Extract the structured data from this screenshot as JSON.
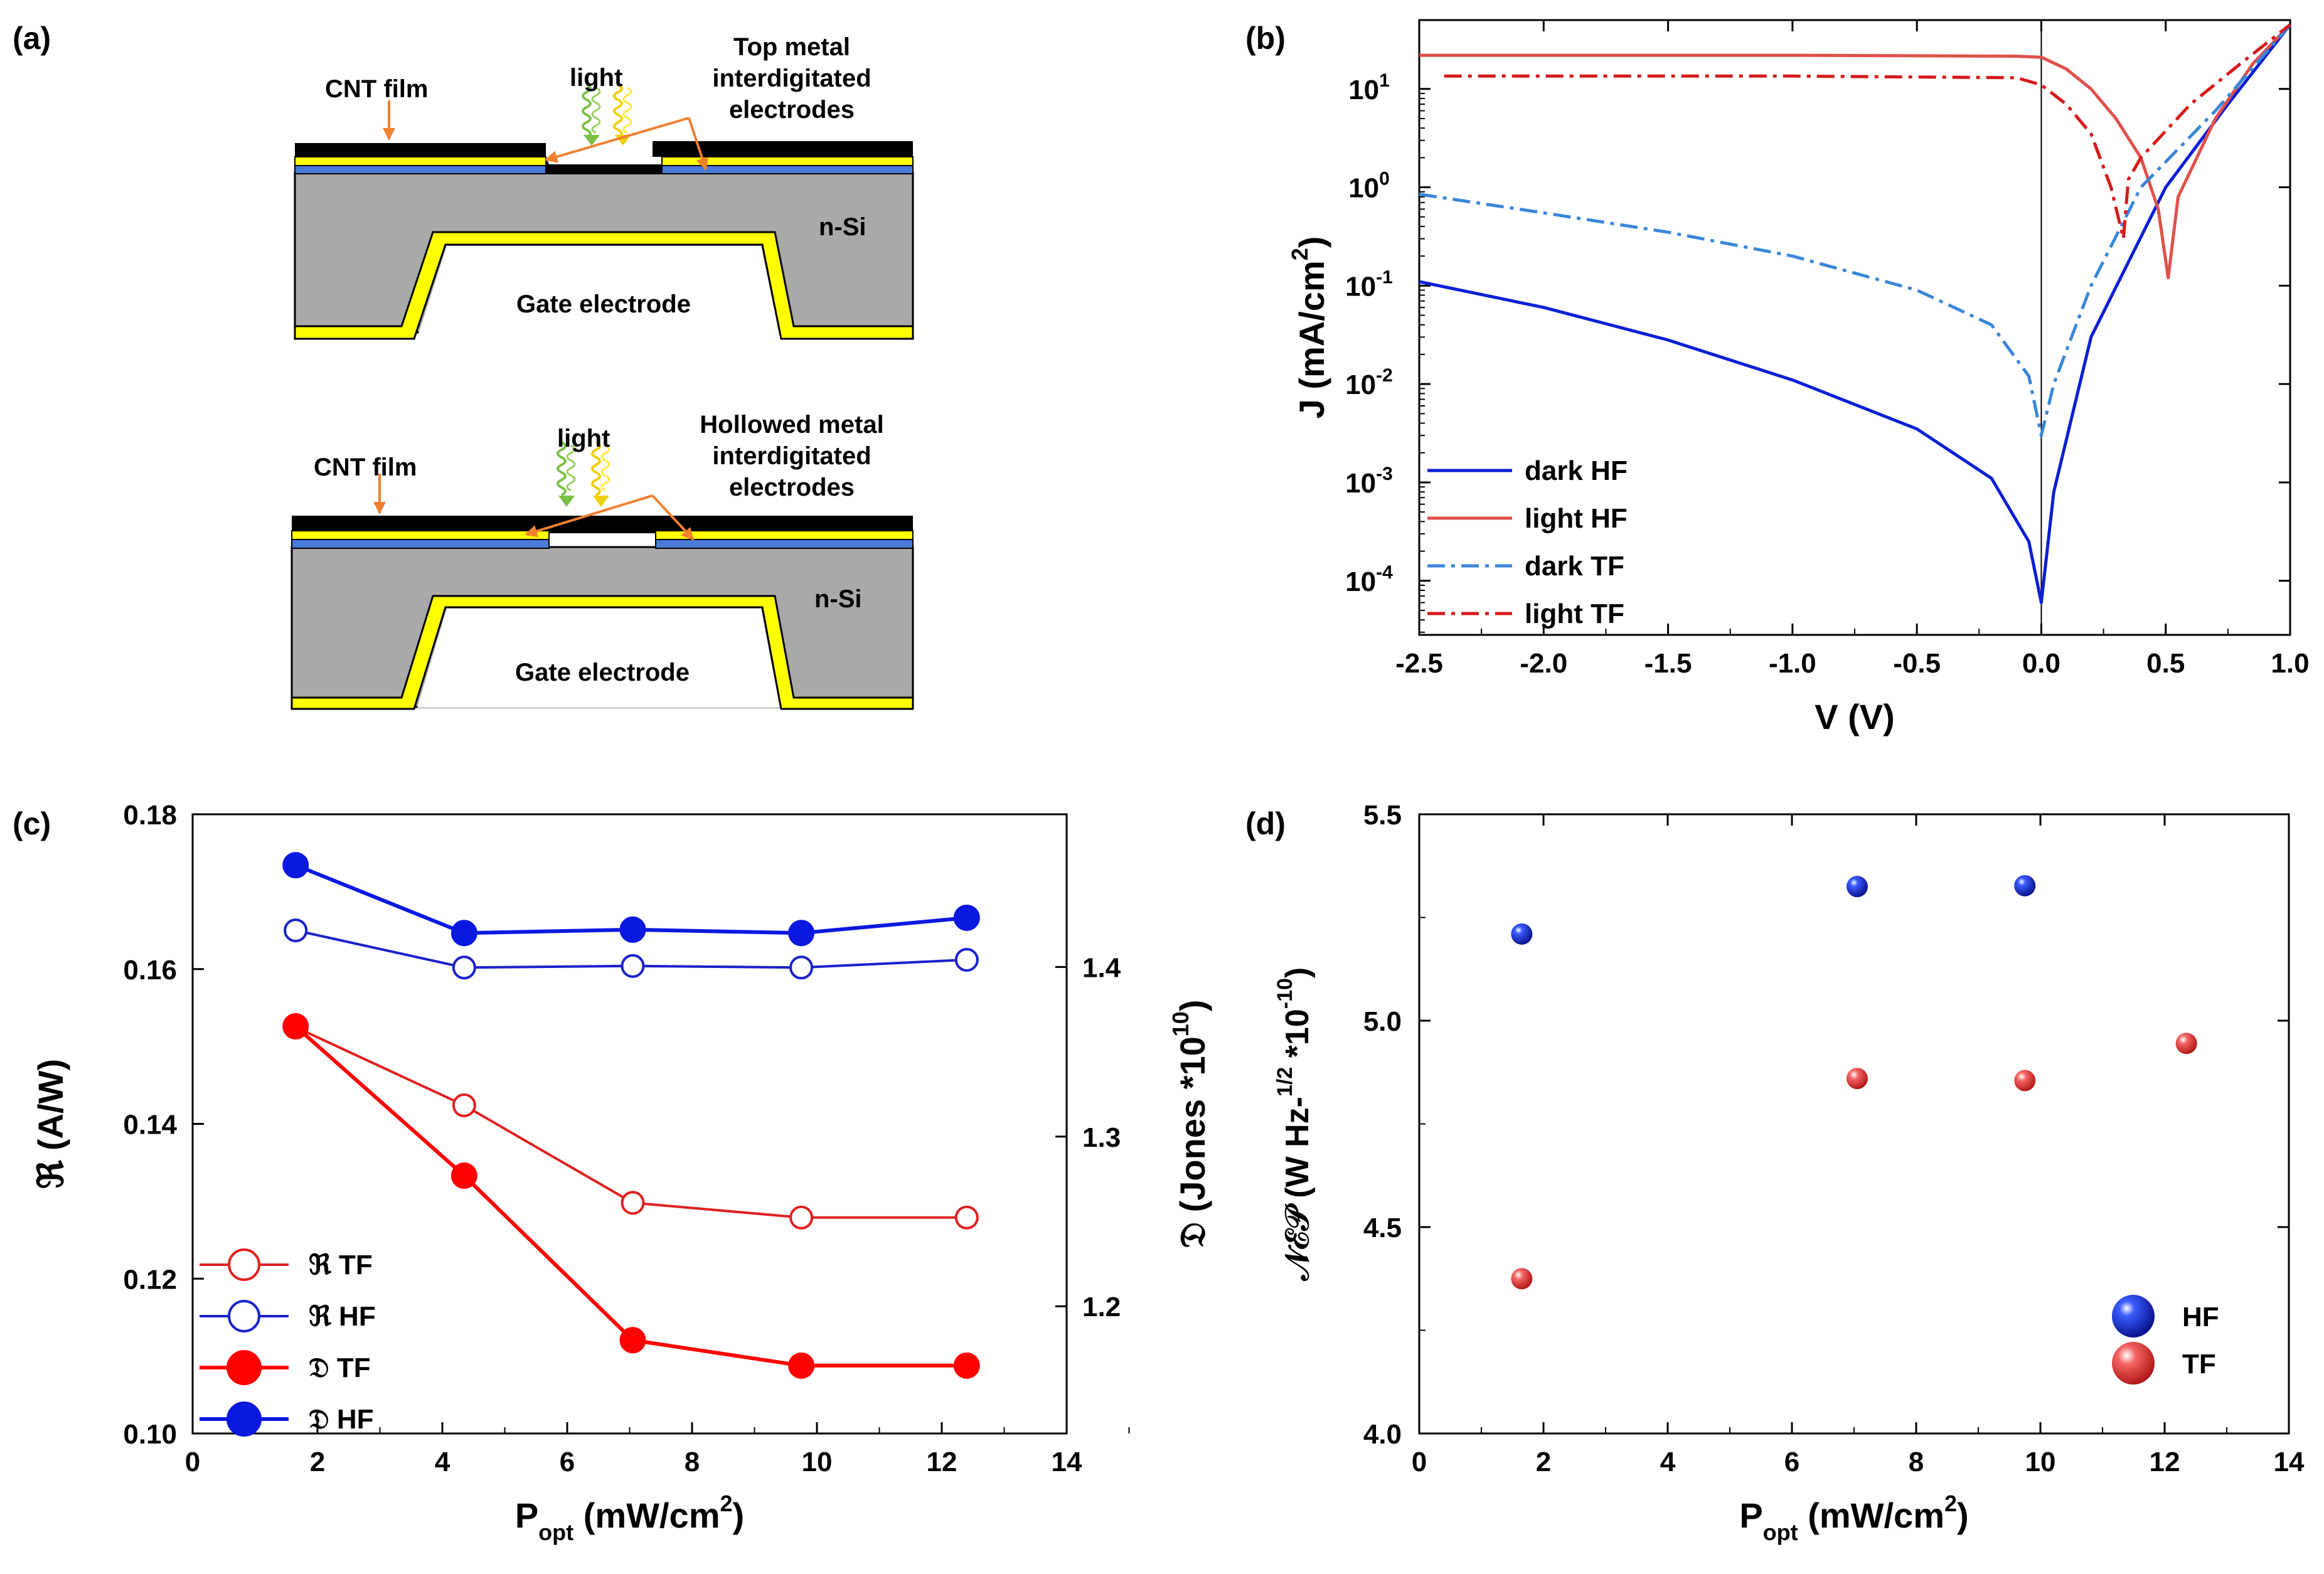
{
  "panels": {
    "a": {
      "label": "(a)",
      "top": {
        "cnt_label": "CNT film",
        "light_label": "light",
        "electrode_label": [
          "Top metal",
          "interdigitated",
          "electrodes"
        ],
        "substrate_label": "n-Si",
        "gate_label": "Gate electrode"
      },
      "bottom": {
        "cnt_label": "CNT film",
        "light_label": "light",
        "electrode_label": [
          "Hollowed metal",
          "interdigitated",
          "electrodes"
        ],
        "substrate_label": "n-Si",
        "gate_label": "Gate electrode"
      },
      "colors": {
        "film": "#000000",
        "metal": "#ffff00",
        "oxide": "#4a7bd6",
        "silicon": "#a9a9a9",
        "arrow": "#f08030"
      }
    },
    "b": {
      "label": "(b)"
    },
    "c": {
      "label": "(c)"
    },
    "d": {
      "label": "(d)"
    }
  },
  "chart_data": [
    {
      "panel": "b",
      "type": "line",
      "xlabel": "V (V)",
      "ylabel": "J (mA/cm2)",
      "ylabel_main": "J (mA/cm",
      "ylabel_sup": "2",
      "ylabel_tail": ")",
      "yscale": "log",
      "xlim": [
        -2.5,
        1.0
      ],
      "ylim_log10": [
        -4.55,
        1.7
      ],
      "xticks": [
        -2.5,
        -2.0,
        -1.5,
        -1.0,
        -0.5,
        0.0,
        0.5,
        1.0
      ],
      "xtick_labels": [
        "-2.5",
        "-2.0",
        "-1.5",
        "-1.0",
        "-0.5",
        "0.0",
        "0.5",
        "1.0"
      ],
      "ytick_exponents": [
        1,
        0,
        -1,
        -2,
        -3,
        -4
      ],
      "ytick_base": "10",
      "ytick_exp_labels": [
        "1",
        "0",
        "-1",
        "-2",
        "-3",
        "-4"
      ],
      "vertical_line_x": 0.0,
      "legend_position": "lower-left",
      "series": [
        {
          "name": "dark HF",
          "color": "#0a1fd6",
          "dash": "solid",
          "x": [
            -2.5,
            -2.0,
            -1.5,
            -1.0,
            -0.5,
            -0.2,
            -0.05,
            0.0,
            0.05,
            0.2,
            0.5,
            0.75,
            1.0
          ],
          "y": [
            0.11,
            0.06,
            0.028,
            0.011,
            0.0035,
            0.0011,
            0.00025,
            6e-05,
            0.0008,
            0.03,
            1.0,
            7.0,
            45
          ]
        },
        {
          "name": "light HF",
          "color": "#e0504a",
          "dash": "solid",
          "x": [
            -2.5,
            -1.0,
            -0.1,
            0.0,
            0.1,
            0.2,
            0.3,
            0.4,
            0.47,
            0.51,
            0.55,
            0.7,
            0.85,
            1.0
          ],
          "y": [
            22,
            22,
            21.5,
            21,
            16,
            10,
            5,
            2,
            0.6,
            0.12,
            0.8,
            5,
            18,
            45
          ]
        },
        {
          "name": "dark TF",
          "color": "#3a86d8",
          "dash": "dashdot",
          "x": [
            -2.5,
            -2.0,
            -1.5,
            -1.0,
            -0.5,
            -0.2,
            -0.05,
            0.0,
            0.05,
            0.2,
            0.4,
            0.7,
            1.0
          ],
          "y": [
            0.85,
            0.55,
            0.35,
            0.2,
            0.09,
            0.04,
            0.012,
            0.003,
            0.01,
            0.1,
            1.0,
            6.0,
            45
          ]
        },
        {
          "name": "light TF",
          "color": "#d61a1a",
          "dash": "dashdot",
          "x": [
            -2.4,
            -1.0,
            -0.1,
            0.0,
            0.1,
            0.2,
            0.28,
            0.33,
            0.35,
            0.4,
            0.6,
            0.8,
            1.0
          ],
          "y": [
            13.5,
            13.5,
            13,
            11,
            7,
            3.5,
            1.0,
            0.3,
            1.2,
            2.0,
            7,
            18,
            45
          ]
        }
      ]
    },
    {
      "panel": "c",
      "type": "line",
      "xlabel": "Popt (mW/cm2)",
      "xlabel_main": "P",
      "xlabel_sub": "opt",
      "xlabel_tail": " (mW/cm",
      "xlabel_sup": "2",
      "xlabel_end": ")",
      "ylabel_left": "ℜ (A/W)",
      "ylabel_right_main": "𝔇 (Jones *10",
      "ylabel_right_sup": "10",
      "ylabel_right_end": ")",
      "xlim": [
        0,
        14
      ],
      "ylim_left": [
        0.1,
        0.18
      ],
      "ylim_right": [
        1.125,
        1.49
      ],
      "xticks": [
        "0",
        "2",
        "4",
        "6",
        "8",
        "10",
        "12",
        "14"
      ],
      "yticks_left": [
        "0.10",
        "0.12",
        "0.14",
        "0.16",
        "0.18"
      ],
      "yticks_right": [
        "1.2",
        "1.3",
        "1.4"
      ],
      "legend_position": "lower-left",
      "series": [
        {
          "name": "ℜ TF",
          "axis": "left",
          "color": "#e02020",
          "marker": "open",
          "x": [
            1.65,
            4.35,
            7.05,
            9.75,
            12.4
          ],
          "y": [
            0.1525,
            0.1424,
            0.1298,
            0.1279,
            0.1279
          ]
        },
        {
          "name": "ℜ HF",
          "axis": "left",
          "color": "#1a22cc",
          "marker": "open",
          "x": [
            1.65,
            4.35,
            7.05,
            9.75,
            12.4
          ],
          "y": [
            0.165,
            0.1602,
            0.1604,
            0.1602,
            0.1612
          ]
        },
        {
          "name": "𝔇 TF",
          "axis": "right",
          "color": "#ff0000",
          "marker": "filled",
          "x": [
            1.65,
            4.35,
            7.05,
            9.75,
            12.4
          ],
          "y": [
            1.365,
            1.277,
            1.18,
            1.165,
            1.165
          ]
        },
        {
          "name": "𝔇 HF",
          "axis": "right",
          "color": "#0a18e0",
          "marker": "filled",
          "x": [
            1.65,
            4.35,
            7.05,
            9.75,
            12.4
          ],
          "y": [
            1.46,
            1.42,
            1.422,
            1.42,
            1.429
          ]
        }
      ]
    },
    {
      "panel": "d",
      "type": "scatter",
      "xlabel": "Popt (mW/cm2)",
      "xlabel_main": "P",
      "xlabel_sub": "opt",
      "xlabel_tail": " (mW/cm",
      "xlabel_sup": "2",
      "xlabel_end": ")",
      "ylabel_main": "𝒩ℰ𝒫 (W Hz-",
      "ylabel_sup1": "1/2",
      "ylabel_mid": " *10",
      "ylabel_sup2": "-10",
      "ylabel_end": ")",
      "xlim": [
        0,
        14
      ],
      "ylim": [
        4.0,
        5.5
      ],
      "xticks": [
        "0",
        "2",
        "4",
        "6",
        "8",
        "10",
        "12",
        "14"
      ],
      "yticks": [
        "4.0",
        "4.5",
        "5.0",
        "5.5"
      ],
      "legend_position": "lower-right",
      "series": [
        {
          "name": "HF",
          "color": "#1428e8",
          "x": [
            1.65,
            7.05,
            9.75
          ],
          "y": [
            5.21,
            5.325,
            5.327
          ]
        },
        {
          "name": "TF",
          "color": "#f04848",
          "x": [
            1.65,
            7.05,
            9.75,
            12.35
          ],
          "y": [
            4.375,
            4.86,
            4.855,
            4.945
          ]
        }
      ]
    }
  ]
}
